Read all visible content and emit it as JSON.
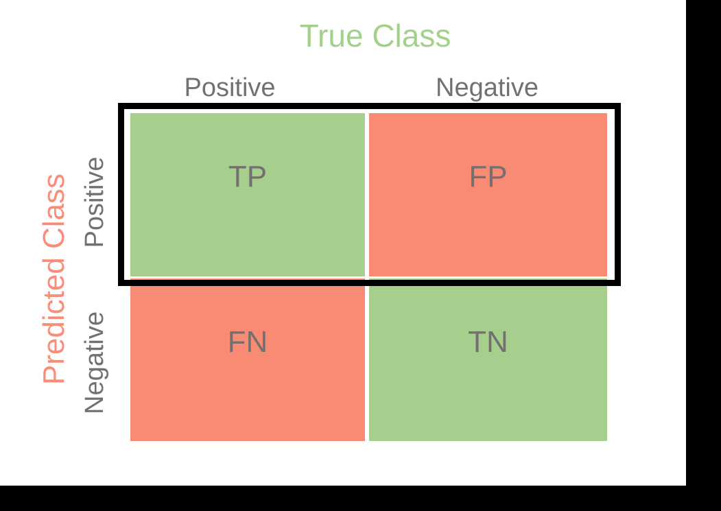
{
  "diagram": {
    "type": "confusion-matrix",
    "top_axis_title": "True Class",
    "left_axis_title": "Predicted Class",
    "column_headers": [
      "Positive",
      "Negative"
    ],
    "row_headers": [
      "Positive",
      "Negative"
    ],
    "cells": {
      "top_left": "TP",
      "top_right": "FP",
      "bottom_left": "FN",
      "bottom_right": "TN"
    },
    "highlight": "black rectangle outlining the predicted-positive row (TP and FP)"
  },
  "colors": {
    "cell_green": "#a6ce8c",
    "cell_salmon": "#f98a74",
    "true_class_title_green": "#a3d18a",
    "predicted_class_title_salmon": "#f98d79",
    "header_gray": "#757070",
    "highlight_frame_black": "#000000",
    "backdrop_black": "#000000"
  }
}
